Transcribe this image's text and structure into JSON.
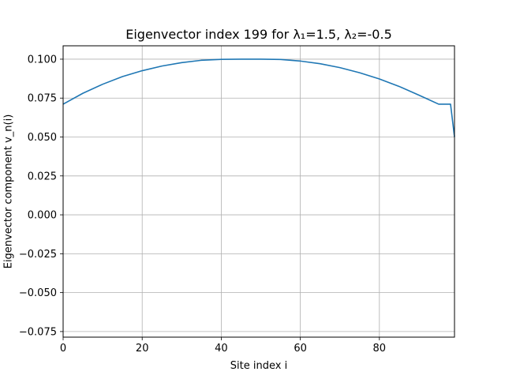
{
  "chart_data": {
    "type": "line",
    "title": "Eigenvector index 199 for λ₁=1.5, λ₂=-0.5",
    "xlabel": "Site index i",
    "ylabel": "Eigenvector component v_n(i)",
    "xlim": [
      0,
      99
    ],
    "ylim": [
      -0.0786,
      0.1086
    ],
    "grid": true,
    "x_ticks": [
      0,
      20,
      40,
      60,
      80
    ],
    "x_tick_labels": [
      "0",
      "20",
      "40",
      "60",
      "80"
    ],
    "y_ticks": [
      0.1,
      0.075,
      0.05,
      0.025,
      0.0,
      -0.025,
      -0.05,
      -0.075
    ],
    "y_tick_labels": [
      "0.100",
      "0.075",
      "0.050",
      "0.025",
      "0.000",
      "−0.025",
      "−0.050",
      "−0.075"
    ],
    "series": [
      {
        "color": "#1f77b4",
        "x": [
          0,
          5,
          10,
          15,
          20,
          25,
          30,
          35,
          40,
          45,
          49,
          50,
          55,
          60,
          65,
          70,
          75,
          80,
          85,
          90,
          95,
          98,
          99
        ],
        "y": [
          0.0711,
          0.0781,
          0.0839,
          0.0888,
          0.0926,
          0.0956,
          0.0978,
          0.0993,
          0.0999,
          0.1,
          0.1,
          0.1,
          0.0998,
          0.0988,
          0.0971,
          0.0946,
          0.0913,
          0.0873,
          0.0825,
          0.0769,
          0.0711,
          0.0711,
          0.05
        ]
      }
    ]
  }
}
